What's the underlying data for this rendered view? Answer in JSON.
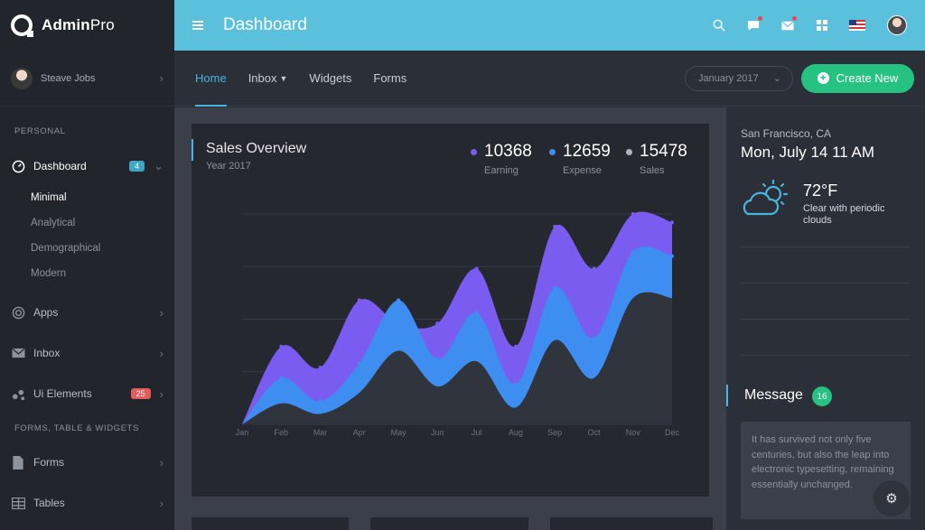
{
  "brand": {
    "name_bold": "Admin",
    "name_light": "Pro"
  },
  "user": {
    "name": "Steave Jobs"
  },
  "sidebar": {
    "section_personal": "PERSONAL",
    "section_forms": "FORMS, TABLE & WIDGETS",
    "dashboard": {
      "label": "Dashboard",
      "badge": "4"
    },
    "sub_items": [
      "Minimal",
      "Analytical",
      "Demographical",
      "Modern"
    ],
    "apps": "Apps",
    "inbox": "Inbox",
    "ui_elements": {
      "label": "Ui Elements",
      "badge": "25"
    },
    "forms": "Forms",
    "tables": "Tables"
  },
  "header": {
    "title": "Dashboard"
  },
  "subnav": {
    "tabs": [
      "Home",
      "Inbox",
      "Widgets",
      "Forms"
    ],
    "date_value": "January 2017",
    "create_label": "Create New"
  },
  "overview": {
    "title": "Sales Overview",
    "subtitle": "Year 2017",
    "stats": [
      {
        "value": "10368",
        "label": "Earning",
        "color": "#7b5cf0"
      },
      {
        "value": "12659",
        "label": "Expense",
        "color": "#3d8ef0"
      },
      {
        "value": "15478",
        "label": "Sales",
        "color": "#b0b4bb"
      }
    ]
  },
  "chart_data": {
    "type": "area",
    "categories": [
      "Jan",
      "Feb",
      "Mar",
      "Apr",
      "May",
      "Jun",
      "Jul",
      "Aug",
      "Sep",
      "Oct",
      "Nov",
      "Dec"
    ],
    "ylim": [
      0,
      100
    ],
    "series": [
      {
        "name": "Earning",
        "color": "#7b5cf0",
        "values": [
          0,
          37,
          27,
          59,
          48,
          48,
          74,
          37,
          94,
          74,
          100,
          96
        ]
      },
      {
        "name": "Expense",
        "color": "#3d8ef0",
        "values": [
          0,
          22,
          11,
          29,
          59,
          31,
          53,
          19,
          65,
          41,
          82,
          80
        ]
      },
      {
        "name": "Sales",
        "color": "#30343d",
        "values": [
          0,
          10,
          5,
          15,
          35,
          18,
          30,
          8,
          40,
          22,
          60,
          60
        ]
      }
    ]
  },
  "weather": {
    "city": "San Francisco, CA",
    "datetime": "Mon, July 14 11 AM",
    "temp": "72°F",
    "desc": "Clear with periodic clouds"
  },
  "message": {
    "title": "Message",
    "count": "16",
    "text": "It has survived not only five centuries, but also the leap into electronic typesetting, remaining essentially unchanged."
  },
  "icons": {
    "menu": "hamburger-icon",
    "search": "search-icon",
    "chat": "chat-icon",
    "mail": "mail-icon",
    "apps": "apps-grid-icon",
    "flag": "us-flag-icon",
    "settings": "gear-icon",
    "weather": "partly-cloudy-icon"
  },
  "colors": {
    "header": "#5ac0dc",
    "accent": "#4ab3de",
    "create": "#26c281"
  }
}
